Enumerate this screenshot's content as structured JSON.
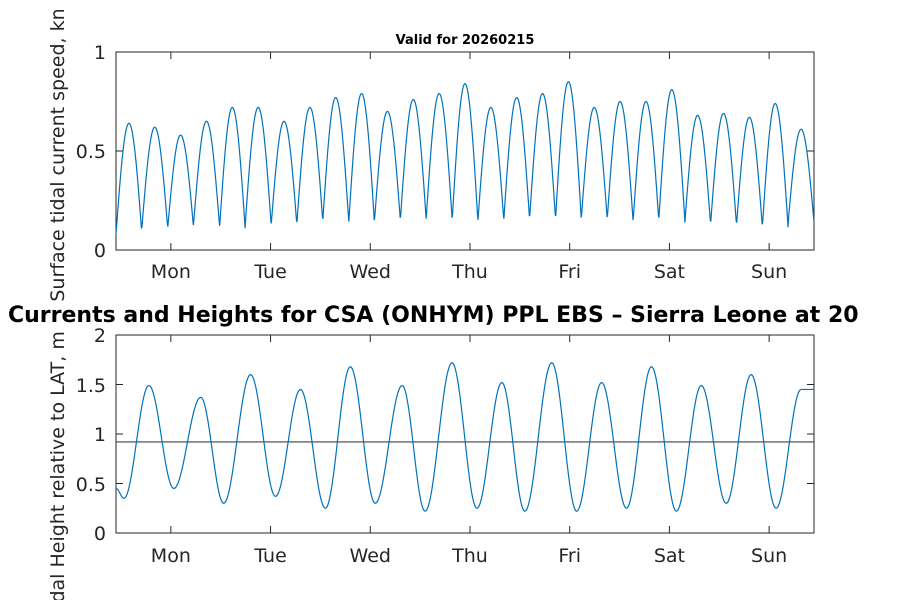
{
  "chart_data": [
    {
      "type": "line",
      "title": "Valid for 20260215",
      "ylabel": "Surface tidal current speed, kn",
      "xlabel": "",
      "xlim": [
        0,
        7
      ],
      "ylim": [
        0,
        1
      ],
      "yticks": [
        0,
        0.5,
        1
      ],
      "ytick_labels": [
        "0",
        "0.5",
        "1"
      ],
      "xticks": [
        0.55,
        1.55,
        2.55,
        3.55,
        4.55,
        5.55,
        6.55
      ],
      "xtick_labels": [
        "Mon",
        "Tue",
        "Wed",
        "Thu",
        "Fri",
        "Sat",
        "Sun"
      ],
      "series": [
        {
          "name": "current speed",
          "color": "#0072BD",
          "peaks": [
            0.64,
            0.62,
            0.58,
            0.65,
            0.72,
            0.72,
            0.65,
            0.72,
            0.77,
            0.79,
            0.7,
            0.76,
            0.79,
            0.84,
            0.72,
            0.77,
            0.79,
            0.85,
            0.72,
            0.75,
            0.75,
            0.81,
            0.68,
            0.69,
            0.67,
            0.74,
            0.61
          ],
          "troughs": [
            0.08,
            0.11,
            0.11,
            0.13,
            0.1,
            0.13,
            0.12,
            0.14,
            0.15,
            0.13,
            0.15,
            0.15,
            0.16,
            0.14,
            0.15,
            0.15,
            0.16,
            0.15,
            0.16,
            0.15,
            0.14,
            0.16,
            0.13,
            0.13,
            0.12,
            0.11,
            0.14
          ]
        }
      ]
    },
    {
      "type": "line",
      "title": "Currents and Heights for CSA (ONHYM) PPL EBS  – Sierra Leone at 20",
      "ylabel": "Tidal Height relative to LAT, m",
      "xlabel": "",
      "xlim": [
        0,
        7
      ],
      "ylim": [
        0,
        2
      ],
      "yticks": [
        0,
        0.5,
        1,
        1.5,
        2
      ],
      "ytick_labels": [
        "0",
        "0.5",
        "1",
        "1.5",
        "2"
      ],
      "xticks": [
        0.55,
        1.55,
        2.55,
        3.55,
        4.55,
        5.55,
        6.55
      ],
      "xtick_labels": [
        "Mon",
        "Tue",
        "Wed",
        "Thu",
        "Fri",
        "Sat",
        "Sun"
      ],
      "reference_line": 0.92,
      "series": [
        {
          "name": "tidal height",
          "color": "#0072BD",
          "points": [
            [
              0,
              0.45
            ],
            [
              0.08,
              0.35
            ],
            [
              0.33,
              1.49
            ],
            [
              0.58,
              0.45
            ],
            [
              0.85,
              1.37
            ],
            [
              1.08,
              0.3
            ],
            [
              1.35,
              1.6
            ],
            [
              1.6,
              0.37
            ],
            [
              1.85,
              1.45
            ],
            [
              2.1,
              0.25
            ],
            [
              2.35,
              1.68
            ],
            [
              2.6,
              0.3
            ],
            [
              2.87,
              1.49
            ],
            [
              3.1,
              0.22
            ],
            [
              3.37,
              1.72
            ],
            [
              3.62,
              0.25
            ],
            [
              3.87,
              1.52
            ],
            [
              4.1,
              0.22
            ],
            [
              4.37,
              1.72
            ],
            [
              4.62,
              0.22
            ],
            [
              4.87,
              1.52
            ],
            [
              5.12,
              0.25
            ],
            [
              5.37,
              1.68
            ],
            [
              5.62,
              0.22
            ],
            [
              5.87,
              1.49
            ],
            [
              6.12,
              0.3
            ],
            [
              6.37,
              1.6
            ],
            [
              6.62,
              0.25
            ],
            [
              6.87,
              1.45
            ],
            [
              7,
              1.45
            ]
          ]
        }
      ]
    }
  ]
}
